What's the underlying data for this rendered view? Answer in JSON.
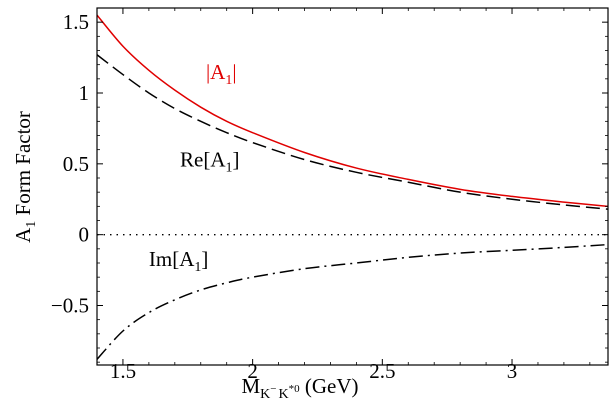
{
  "chart_data": {
    "type": "line",
    "title": "",
    "xlabel": {
      "main": "M",
      "sub_k1": "K",
      "sub_k1_sup": "−",
      "sub_k2": "K",
      "sub_k2_sup": "*0",
      "unit": "(GeV)"
    },
    "ylabel": {
      "main": "A",
      "sub": "1",
      "rest": "Form Factor"
    },
    "xlim": [
      1.4,
      3.37
    ],
    "ylim": [
      -0.92,
      1.6
    ],
    "x_ticks": [
      1.5,
      2,
      2.5,
      3
    ],
    "x_tick_labels": [
      "1.5",
      "2",
      "2.5",
      "3"
    ],
    "y_ticks": [
      1.5,
      1,
      0.5,
      0,
      -0.5
    ],
    "y_tick_labels": [
      "1.5",
      "1",
      "0.5",
      "0",
      "−0.5"
    ],
    "grid": false,
    "series": [
      {
        "name": "|A1|",
        "label_parts": {
          "pre": "|A",
          "sub": "1",
          "post": "|"
        },
        "color": "#e00000",
        "style": "solid",
        "x": [
          1.4,
          1.5,
          1.6,
          1.7,
          1.8,
          1.9,
          2.0,
          2.2,
          2.4,
          2.6,
          2.8,
          3.0,
          3.2,
          3.37
        ],
        "y": [
          1.55,
          1.33,
          1.16,
          1.02,
          0.9,
          0.8,
          0.72,
          0.58,
          0.47,
          0.39,
          0.32,
          0.27,
          0.23,
          0.2
        ]
      },
      {
        "name": "Re[A1]",
        "label_parts": {
          "pre": "Re[A",
          "sub": "1",
          "post": "]"
        },
        "color": "#000000",
        "style": "dashed",
        "x": [
          1.4,
          1.5,
          1.6,
          1.7,
          1.8,
          1.9,
          2.0,
          2.2,
          2.4,
          2.6,
          2.8,
          3.0,
          3.2,
          3.37
        ],
        "y": [
          1.27,
          1.13,
          1.0,
          0.89,
          0.8,
          0.72,
          0.65,
          0.53,
          0.44,
          0.37,
          0.3,
          0.25,
          0.21,
          0.18
        ]
      },
      {
        "name": "Im[A1]",
        "label_parts": {
          "pre": "Im[A",
          "sub": "1",
          "post": "]"
        },
        "color": "#000000",
        "style": "dashdot",
        "x": [
          1.4,
          1.5,
          1.6,
          1.7,
          1.8,
          1.9,
          2.0,
          2.2,
          2.4,
          2.6,
          2.8,
          3.0,
          3.2,
          3.37
        ],
        "y": [
          -0.88,
          -0.68,
          -0.55,
          -0.46,
          -0.39,
          -0.34,
          -0.3,
          -0.24,
          -0.2,
          -0.16,
          -0.13,
          -0.11,
          -0.09,
          -0.07
        ]
      }
    ],
    "reference_lines": [
      {
        "y": 0,
        "style": "dotted",
        "color": "#000000"
      }
    ]
  }
}
